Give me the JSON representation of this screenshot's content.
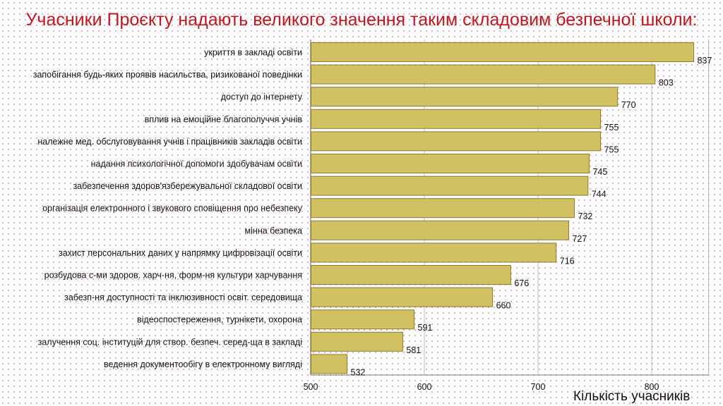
{
  "chart_data": {
    "type": "bar",
    "orientation": "horizontal",
    "title": "Учасники Проєкту надають великого значення таким складовим безпечної школи:",
    "xlabel": "Кількість учасників",
    "ylabel": "",
    "xlim": [
      500,
      850
    ],
    "xticks": [
      500,
      600,
      700,
      800
    ],
    "grid": true,
    "bar_color": "#d2c163",
    "bar_edge_color": "#8a7d2c",
    "categories": [
      "укриття в закладі освіти",
      "запобігання будь-яких проявів насильства, ризикованої поведінки",
      "доступ до інтернету",
      "вплив на емоційне благополуччя учнів",
      "належне мед. обслуговування учнів і працівників закладів освіти",
      "надання  психологічної допомоги здобувачам освіти",
      "забезпечення здоров'язбережувальної складової освіти",
      "організація електронного і звукового сповіщення про небезпеку",
      "мінна безпека",
      "захист персональних даних у напрямку цифровізації освіти",
      "розбудова с-ми здоров. харч-ня, форм-ня культури харчування",
      "забезп-ня доступності та інклюзивності освіт. середовища",
      "відеоспостереження, турнікети, охорона",
      "залучення соц. інституцій для створ. безпеч. серед-ща в закладі",
      "ведення документообігу в електронному вигляді"
    ],
    "values": [
      837,
      803,
      770,
      755,
      755,
      745,
      744,
      732,
      727,
      716,
      676,
      660,
      591,
      581,
      532
    ]
  }
}
